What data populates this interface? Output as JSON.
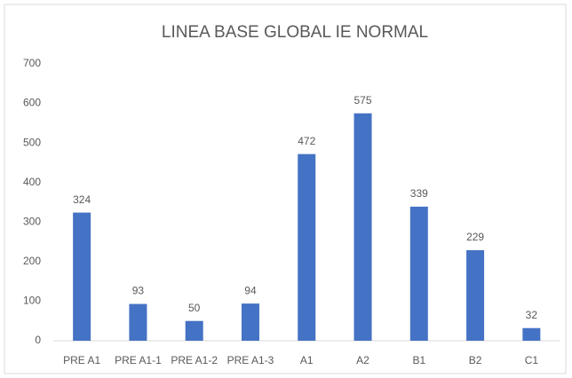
{
  "chart_data": {
    "type": "bar",
    "title": "LINEA BASE GLOBAL IE NORMAL",
    "categories": [
      "PRE A1",
      "PRE A1-1",
      "PRE A1-2",
      "PRE A1-3",
      "A1",
      "A2",
      "B1",
      "B2",
      "C1"
    ],
    "values": [
      324,
      93,
      50,
      94,
      472,
      575,
      339,
      229,
      32
    ],
    "color": "#4472c4",
    "ylim": [
      0,
      700
    ],
    "yticks": [
      0,
      100,
      200,
      300,
      400,
      500,
      600,
      700
    ],
    "grid": false
  }
}
